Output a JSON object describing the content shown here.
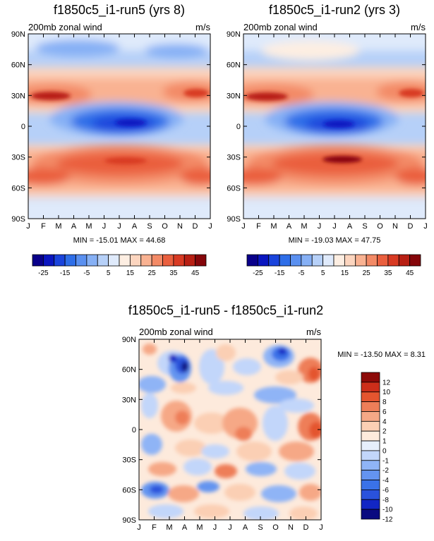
{
  "colors": {
    "full_field": [
      "#09008a",
      "#0a16c0",
      "#1a44dc",
      "#2e6ee8",
      "#5a90f0",
      "#86b0f5",
      "#b6d0f8",
      "#dfeafb",
      "#fdeee2",
      "#fcd5bf",
      "#f9b292",
      "#f38a66",
      "#ea5f3e",
      "#d83a23",
      "#b81f13",
      "#85060a"
    ],
    "diff_field": [
      "#0a0a80",
      "#1226c4",
      "#2a52dc",
      "#3a72e8",
      "#6494f0",
      "#8fb4f6",
      "#c2d6fa",
      "#e6effc",
      "#fdeadc",
      "#fbcfb4",
      "#f6a886",
      "#ee7e58",
      "#e4552f",
      "#cc2e1a",
      "#8d0a08"
    ]
  },
  "charts": [
    {
      "id": "run5",
      "title": "f1850c5_i1-run5 (yrs 8)",
      "left_label": "200mb zonal wind",
      "right_label": "m/s",
      "stats": "MIN = -15.01 MAX =  44.68",
      "x_ticks": [
        "J",
        "F",
        "M",
        "A",
        "M",
        "J",
        "J",
        "A",
        "S",
        "O",
        "N",
        "D",
        "J"
      ],
      "y_ticks": [
        "90N",
        "60N",
        "30N",
        "0",
        "30S",
        "60S",
        "90S"
      ],
      "colorbar_labels": [
        "-25",
        "-15",
        "-5",
        "5",
        "15",
        "25",
        "35",
        "45"
      ]
    },
    {
      "id": "run2",
      "title": "f1850c5_i1-run2 (yrs 3)",
      "left_label": "200mb zonal wind",
      "right_label": "m/s",
      "stats": "MIN = -19.03 MAX =  47.75",
      "x_ticks": [
        "J",
        "F",
        "M",
        "A",
        "M",
        "J",
        "J",
        "A",
        "S",
        "O",
        "N",
        "D",
        "J"
      ],
      "y_ticks": [
        "90N",
        "60N",
        "30N",
        "0",
        "30S",
        "60S",
        "90S"
      ],
      "colorbar_labels": [
        "-25",
        "-15",
        "-5",
        "5",
        "15",
        "25",
        "35",
        "45"
      ]
    },
    {
      "id": "diff",
      "title": "f1850c5_i1-run5 - f1850c5_i1-run2",
      "left_label": "200mb zonal wind",
      "right_label": "m/s",
      "stats": "MIN = -13.50 MAX =   8.31",
      "x_ticks": [
        "J",
        "F",
        "M",
        "A",
        "M",
        "J",
        "J",
        "A",
        "S",
        "O",
        "N",
        "D",
        "J"
      ],
      "y_ticks": [
        "90N",
        "60N",
        "30N",
        "0",
        "30S",
        "60S",
        "90S"
      ],
      "colorbar_labels": [
        "12",
        "10",
        "8",
        "6",
        "4",
        "2",
        "1",
        "0",
        "-1",
        "-2",
        "-4",
        "-6",
        "-8",
        "-10",
        "-12"
      ]
    }
  ]
}
